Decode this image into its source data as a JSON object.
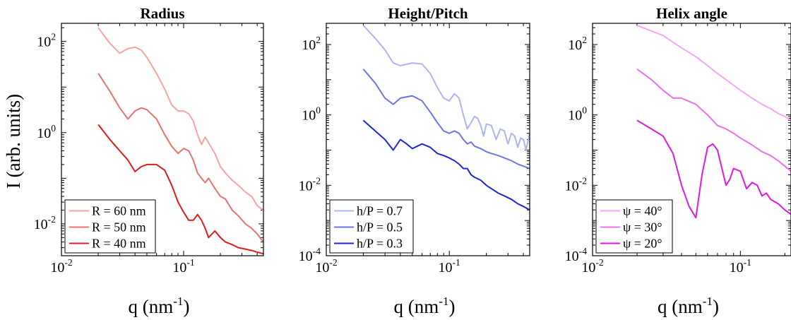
{
  "figure": {
    "ylabel": "I (arb. units)"
  },
  "chart_data": [
    {
      "type": "line",
      "title": "Radius",
      "xlabel": "q (nm^-1)",
      "ylabel": "I (arb. units)",
      "xscale": "log",
      "yscale": "log",
      "xlim": [
        0.01,
        0.45
      ],
      "ylim": [
        0.002,
        250
      ],
      "xticks": [
        {
          "value": 0.01,
          "base": "10",
          "exp": "-2"
        },
        {
          "value": 0.1,
          "base": "10",
          "exp": "-1"
        }
      ],
      "yticks": [
        {
          "value": 0.01,
          "base": "10",
          "exp": "-2"
        },
        {
          "value": 1,
          "base": "10",
          "exp": "0"
        },
        {
          "value": 100,
          "base": "10",
          "exp": "2"
        }
      ],
      "grid": false,
      "legend_position": "bottom-left",
      "series": [
        {
          "name": "R = 60 nm",
          "color": "#f6a3a3",
          "x": [
            0.02,
            0.025,
            0.03,
            0.035,
            0.04,
            0.045,
            0.05,
            0.06,
            0.07,
            0.08,
            0.09,
            0.1,
            0.11,
            0.12,
            0.13,
            0.14,
            0.15,
            0.16,
            0.18,
            0.2,
            0.22,
            0.25,
            0.28,
            0.32,
            0.36,
            0.4,
            0.45
          ],
          "y": [
            200,
            90,
            55,
            70,
            75,
            65,
            45,
            20,
            9,
            4,
            3,
            3,
            2.6,
            1.8,
            0.9,
            0.55,
            0.8,
            0.6,
            0.35,
            0.18,
            0.13,
            0.09,
            0.07,
            0.05,
            0.04,
            0.025,
            0.02
          ]
        },
        {
          "name": "R = 50 nm",
          "color": "#ec7070",
          "x": [
            0.02,
            0.025,
            0.03,
            0.035,
            0.04,
            0.045,
            0.05,
            0.06,
            0.07,
            0.08,
            0.09,
            0.1,
            0.11,
            0.12,
            0.13,
            0.14,
            0.15,
            0.16,
            0.18,
            0.2,
            0.22,
            0.25,
            0.28,
            0.32,
            0.36,
            0.4,
            0.45
          ],
          "y": [
            20,
            8,
            3.5,
            2,
            3,
            3.5,
            3.2,
            2,
            0.9,
            0.5,
            0.35,
            0.45,
            0.4,
            0.25,
            0.13,
            0.1,
            0.08,
            0.1,
            0.06,
            0.04,
            0.035,
            0.02,
            0.015,
            0.01,
            0.008,
            0.006,
            0.004
          ]
        },
        {
          "name": "R = 40 nm",
          "color": "#e01b1b",
          "x": [
            0.02,
            0.025,
            0.03,
            0.035,
            0.04,
            0.045,
            0.05,
            0.06,
            0.07,
            0.08,
            0.09,
            0.1,
            0.11,
            0.12,
            0.13,
            0.14,
            0.15,
            0.16,
            0.18,
            0.2,
            0.22,
            0.25,
            0.28,
            0.32,
            0.36,
            0.4,
            0.45
          ],
          "y": [
            1.5,
            0.7,
            0.4,
            0.25,
            0.14,
            0.18,
            0.2,
            0.2,
            0.15,
            0.07,
            0.03,
            0.018,
            0.012,
            0.012,
            0.016,
            0.012,
            0.008,
            0.005,
            0.007,
            0.005,
            0.004,
            0.0035,
            0.003,
            0.0028,
            0.0026,
            0.0024,
            0.0022
          ]
        }
      ]
    },
    {
      "type": "line",
      "title": "Height/Pitch",
      "xlabel": "q (nm^-1)",
      "ylabel": "",
      "xscale": "log",
      "yscale": "log",
      "xlim": [
        0.01,
        0.45
      ],
      "ylim": [
        0.0001,
        400
      ],
      "xticks": [
        {
          "value": 0.01,
          "base": "10",
          "exp": "-2"
        },
        {
          "value": 0.1,
          "base": "10",
          "exp": "-1"
        }
      ],
      "yticks": [
        {
          "value": 0.0001,
          "base": "10",
          "exp": "-4"
        },
        {
          "value": 0.01,
          "base": "10",
          "exp": "-2"
        },
        {
          "value": 1,
          "base": "10",
          "exp": "0"
        },
        {
          "value": 100,
          "base": "10",
          "exp": "2"
        }
      ],
      "grid": false,
      "legend_position": "bottom-left",
      "series": [
        {
          "name": "h/P = 0.7",
          "color": "#aeb4ef",
          "x": [
            0.02,
            0.025,
            0.03,
            0.035,
            0.04,
            0.05,
            0.06,
            0.07,
            0.08,
            0.09,
            0.1,
            0.11,
            0.12,
            0.13,
            0.14,
            0.15,
            0.16,
            0.17,
            0.18,
            0.19,
            0.2,
            0.22,
            0.24,
            0.26,
            0.28,
            0.3,
            0.32,
            0.34,
            0.36,
            0.38,
            0.4,
            0.42,
            0.45
          ],
          "y": [
            350,
            150,
            70,
            30,
            25,
            30,
            28,
            15,
            6,
            3,
            2.5,
            4,
            3,
            1,
            0.4,
            0.6,
            0.9,
            0.8,
            0.5,
            0.25,
            0.55,
            0.5,
            0.2,
            0.4,
            0.35,
            0.15,
            0.3,
            0.25,
            0.12,
            0.22,
            0.2,
            0.1,
            0.3
          ]
        },
        {
          "name": "h/P = 0.5",
          "color": "#6c75e2",
          "x": [
            0.02,
            0.025,
            0.03,
            0.035,
            0.04,
            0.05,
            0.06,
            0.07,
            0.08,
            0.09,
            0.1,
            0.11,
            0.12,
            0.13,
            0.14,
            0.15,
            0.16,
            0.18,
            0.2,
            0.22,
            0.25,
            0.28,
            0.32,
            0.36,
            0.4,
            0.45
          ],
          "y": [
            20,
            8,
            3,
            2,
            3,
            3.5,
            2.5,
            1.2,
            0.6,
            0.35,
            0.3,
            0.35,
            0.3,
            0.2,
            0.15,
            0.17,
            0.13,
            0.11,
            0.09,
            0.08,
            0.07,
            0.06,
            0.05,
            0.04,
            0.035,
            0.03
          ]
        },
        {
          "name": "h/P = 0.3",
          "color": "#1d26d6",
          "x": [
            0.02,
            0.025,
            0.03,
            0.035,
            0.04,
            0.045,
            0.05,
            0.06,
            0.07,
            0.08,
            0.09,
            0.1,
            0.11,
            0.12,
            0.13,
            0.14,
            0.15,
            0.16,
            0.18,
            0.2,
            0.22,
            0.25,
            0.28,
            0.32,
            0.36,
            0.4,
            0.45
          ],
          "y": [
            0.7,
            0.35,
            0.2,
            0.1,
            0.2,
            0.15,
            0.11,
            0.15,
            0.12,
            0.08,
            0.07,
            0.06,
            0.05,
            0.04,
            0.03,
            0.03,
            0.02,
            0.017,
            0.014,
            0.01,
            0.008,
            0.006,
            0.005,
            0.004,
            0.003,
            0.0025,
            0.002
          ]
        }
      ]
    },
    {
      "type": "line",
      "title": "Helix angle",
      "xlabel": "q (nm^-1)",
      "ylabel": "",
      "xscale": "log",
      "yscale": "log",
      "xlim": [
        0.01,
        0.22
      ],
      "ylim": [
        0.0001,
        400
      ],
      "xticks": [
        {
          "value": 0.01,
          "base": "10",
          "exp": "-2"
        },
        {
          "value": 0.1,
          "base": "10",
          "exp": "-1"
        }
      ],
      "yticks": [
        {
          "value": 0.0001,
          "base": "10",
          "exp": "-4"
        },
        {
          "value": 0.01,
          "base": "10",
          "exp": "-2"
        },
        {
          "value": 1,
          "base": "10",
          "exp": "0"
        },
        {
          "value": 100,
          "base": "10",
          "exp": "2"
        }
      ],
      "grid": false,
      "legend_position": "bottom-left",
      "series": [
        {
          "name": "ψ = 40°",
          "color": "#f6a6f6",
          "x": [
            0.02,
            0.03,
            0.04,
            0.05,
            0.06,
            0.07,
            0.08,
            0.1,
            0.12,
            0.14,
            0.16,
            0.18,
            0.2,
            0.22
          ],
          "y": [
            350,
            180,
            80,
            45,
            25,
            15,
            10,
            5,
            3,
            2,
            1.5,
            1.1,
            0.9,
            0.7
          ]
        },
        {
          "name": "ψ = 30°",
          "color": "#ec70ec",
          "x": [
            0.02,
            0.025,
            0.03,
            0.035,
            0.04,
            0.05,
            0.06,
            0.07,
            0.08,
            0.09,
            0.1,
            0.12,
            0.14,
            0.16,
            0.18,
            0.2,
            0.22
          ],
          "y": [
            20,
            10,
            5,
            3,
            3,
            2,
            1,
            0.5,
            0.4,
            0.3,
            0.22,
            0.14,
            0.09,
            0.07,
            0.05,
            0.035,
            0.025
          ]
        },
        {
          "name": "ψ = 20°",
          "color": "#e018e0",
          "x": [
            0.02,
            0.025,
            0.03,
            0.035,
            0.04,
            0.045,
            0.05,
            0.055,
            0.06,
            0.065,
            0.07,
            0.075,
            0.08,
            0.085,
            0.09,
            0.1,
            0.11,
            0.12,
            0.13,
            0.14,
            0.15,
            0.16,
            0.18,
            0.2,
            0.22
          ],
          "y": [
            0.7,
            0.4,
            0.25,
            0.08,
            0.01,
            0.0025,
            0.0012,
            0.02,
            0.12,
            0.15,
            0.1,
            0.03,
            0.01,
            0.015,
            0.03,
            0.025,
            0.008,
            0.012,
            0.01,
            0.005,
            0.006,
            0.004,
            0.003,
            0.002,
            0.0015
          ]
        }
      ]
    }
  ]
}
